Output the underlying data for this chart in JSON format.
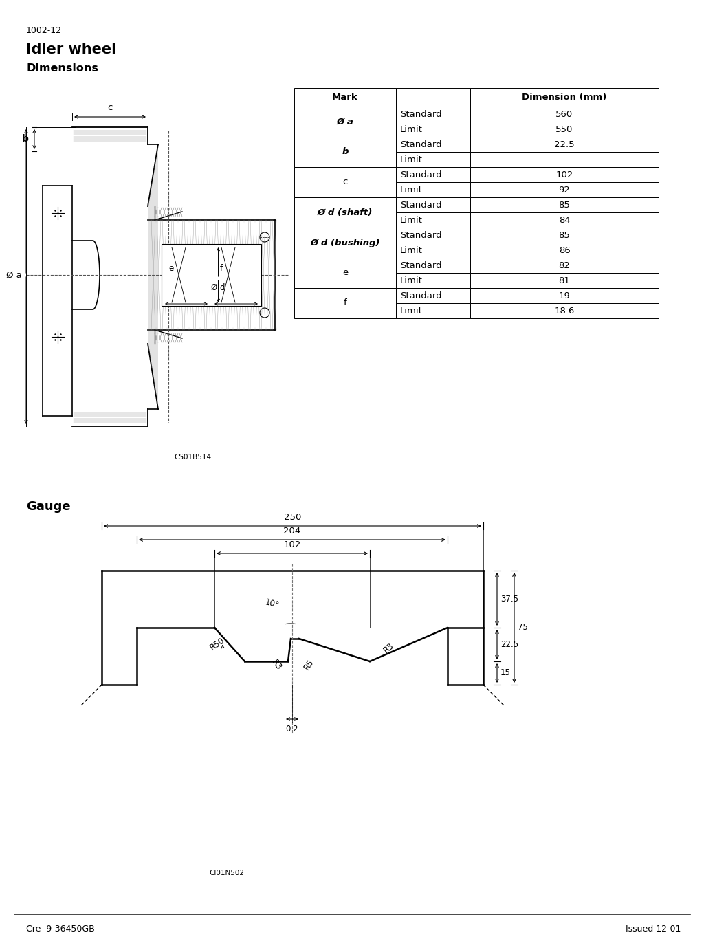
{
  "doc_number": "1002-12",
  "title": "Idler wheel",
  "subtitle": "Dimensions",
  "gauge_title": "Gauge",
  "footer_left": "Cre  9-36450GB",
  "footer_right": "Issued 12-01",
  "ref_top": "CS01B514",
  "ref_bottom": "CI01N502",
  "marks": [
    {
      "Ø a": [
        [
          "Standard",
          "560"
        ],
        [
          "Limit",
          "550"
        ]
      ],
      "bold": true
    },
    {
      "b": [
        [
          "Standard",
          "22.5"
        ],
        [
          "Limit",
          "---"
        ]
      ],
      "bold": true
    },
    {
      "c": [
        [
          "Standard",
          "102"
        ],
        [
          "Limit",
          "92"
        ]
      ],
      "bold": false
    },
    {
      "Ø d (shaft)": [
        [
          "Standard",
          "85"
        ],
        [
          "Limit",
          "84"
        ]
      ],
      "bold": true
    },
    {
      "Ø d (bushing)": [
        [
          "Standard",
          "85"
        ],
        [
          "Limit",
          "86"
        ]
      ],
      "bold": true
    },
    {
      "e": [
        [
          "Standard",
          "82"
        ],
        [
          "Limit",
          "81"
        ]
      ],
      "bold": false
    },
    {
      "f": [
        [
          "Standard",
          "19"
        ],
        [
          "Limit",
          "18.6"
        ]
      ],
      "bold": false
    }
  ],
  "gauge": {
    "d250": "250",
    "d204": "204",
    "d102": "102",
    "d37_5": "37.5",
    "d75": "75",
    "d22_5": "22.5",
    "d15": "15",
    "angle": "10°",
    "R50": "R50",
    "R3a": "R3",
    "R5": "R5",
    "R3b": "R3",
    "d02": "0.2"
  },
  "bg_color": "#ffffff"
}
